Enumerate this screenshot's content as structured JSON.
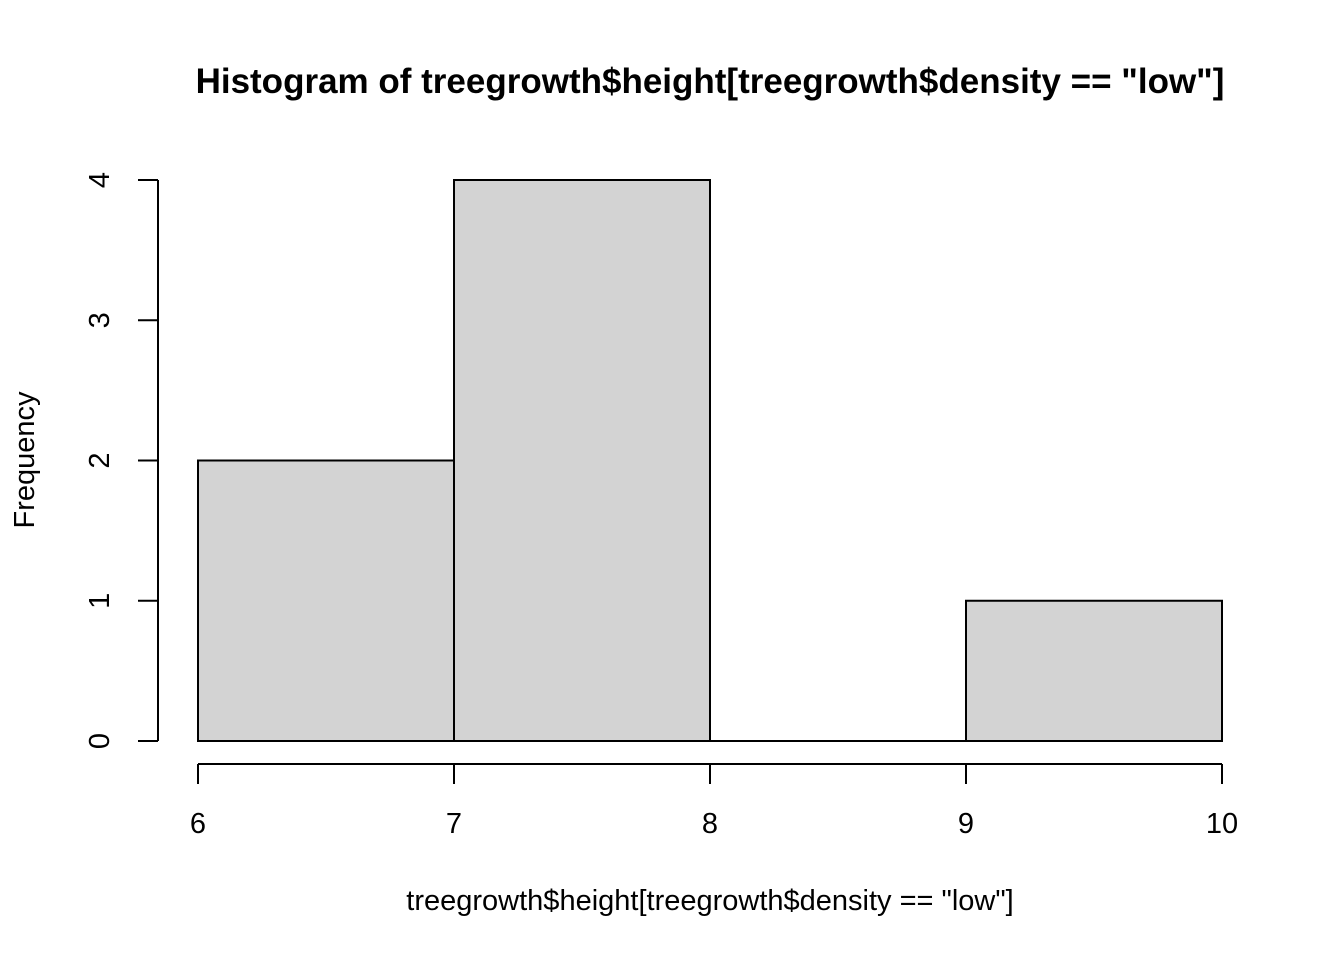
{
  "chart_data": {
    "type": "bar",
    "title": "Histogram of treegrowth$height[treegrowth$density == \"low\"]",
    "xlabel": "treegrowth$height[treegrowth$density == \"low\"]",
    "ylabel": "Frequency",
    "bins": [
      {
        "from": 6,
        "to": 7,
        "count": 2
      },
      {
        "from": 7,
        "to": 8,
        "count": 4
      },
      {
        "from": 8,
        "to": 9,
        "count": 0
      },
      {
        "from": 9,
        "to": 10,
        "count": 1
      }
    ],
    "xlim": [
      6,
      10
    ],
    "ylim": [
      0,
      4
    ],
    "xticks": [
      "6",
      "7",
      "8",
      "9",
      "10"
    ],
    "yticks": [
      "0",
      "1",
      "2",
      "3",
      "4"
    ],
    "bar_fill": "#d3d3d3",
    "grid": false
  }
}
